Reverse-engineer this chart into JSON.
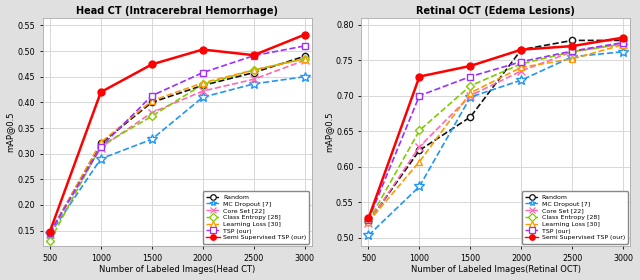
{
  "x": [
    500,
    1000,
    1500,
    2000,
    2500,
    3000
  ],
  "chart1": {
    "title": "Head CT (Intracerebral Hemorrhage)",
    "xlabel": "Number of Labeled Images(Head CT)",
    "ylabel": "mAP@0.5",
    "ylim": [
      0.12,
      0.565
    ],
    "yticks": [
      0.15,
      0.2,
      0.25,
      0.3,
      0.35,
      0.4,
      0.45,
      0.5,
      0.55
    ],
    "series": {
      "Random": [
        0.145,
        0.32,
        0.4,
        0.433,
        0.458,
        0.49
      ],
      "MC Dropout [7]": [
        0.143,
        0.29,
        0.328,
        0.41,
        0.436,
        0.45
      ],
      "Core Set [22]": [
        0.144,
        0.312,
        0.38,
        0.422,
        0.445,
        0.482
      ],
      "Class Entropy [28]": [
        0.13,
        0.315,
        0.373,
        0.435,
        0.463,
        0.485
      ],
      "Learning Loss [30]": [
        0.145,
        0.322,
        0.403,
        0.438,
        0.463,
        0.485
      ],
      "TSP (our)": [
        0.146,
        0.313,
        0.413,
        0.458,
        0.491,
        0.51
      ],
      "Semi Supervised TSP (our)": [
        0.148,
        0.42,
        0.474,
        0.503,
        0.492,
        0.532
      ]
    }
  },
  "chart2": {
    "title": "Retinal OCT (Edema Lesions)",
    "xlabel": "Number of Labeled Images(Retinal OCT)",
    "ylabel": "mAP@0.5",
    "ylim": [
      0.488,
      0.81
    ],
    "yticks": [
      0.5,
      0.55,
      0.6,
      0.65,
      0.7,
      0.75,
      0.8
    ],
    "series": {
      "Random": [
        0.522,
        0.623,
        0.67,
        0.765,
        0.778,
        0.778
      ],
      "MC Dropout [7]": [
        0.503,
        0.572,
        0.698,
        0.722,
        0.755,
        0.762
      ],
      "Core Set [22]": [
        0.521,
        0.628,
        0.7,
        0.735,
        0.762,
        0.773
      ],
      "Class Entropy [28]": [
        0.523,
        0.651,
        0.714,
        0.745,
        0.762,
        0.773
      ],
      "Learning Loss [30]": [
        0.522,
        0.607,
        0.704,
        0.74,
        0.752,
        0.772
      ],
      "TSP (our)": [
        0.525,
        0.7,
        0.727,
        0.748,
        0.763,
        0.775
      ],
      "Semi Supervised TSP (our)": [
        0.527,
        0.727,
        0.742,
        0.765,
        0.77,
        0.782
      ]
    }
  },
  "styles": {
    "Random": {
      "color": "#111111",
      "linestyle": "--",
      "marker": "o",
      "markersize": 4.5,
      "lw": 1.2
    },
    "MC Dropout [7]": {
      "color": "#2196F3",
      "linestyle": "--",
      "marker": "*",
      "markersize": 7.0,
      "lw": 1.2
    },
    "Core Set [22]": {
      "color": "#FF69B4",
      "linestyle": "--",
      "marker": "x",
      "markersize": 5.5,
      "lw": 1.2
    },
    "Class Entropy [28]": {
      "color": "#7FCC00",
      "linestyle": "--",
      "marker": "D",
      "markersize": 4.5,
      "lw": 1.2
    },
    "Learning Loss [30]": {
      "color": "#FF9900",
      "linestyle": "--",
      "marker": "^",
      "markersize": 5.0,
      "lw": 1.2
    },
    "TSP (our)": {
      "color": "#9B30FF",
      "linestyle": "--",
      "marker": "s",
      "markersize": 4.5,
      "lw": 1.2
    },
    "Semi Supervised TSP (our)": {
      "color": "#FF0000",
      "linestyle": "-",
      "marker": "o",
      "markersize": 5.0,
      "lw": 1.8
    }
  },
  "legend_order": [
    "Random",
    "MC Dropout [7]",
    "Core Set [22]",
    "Class Entropy [28]",
    "Learning Loss [30]",
    "TSP (our)",
    "Semi Supervised TSP (our)"
  ],
  "bg_color": "#ffffff",
  "grid_color": "#d8d8d8",
  "fig_bg": "#e0e0e0"
}
